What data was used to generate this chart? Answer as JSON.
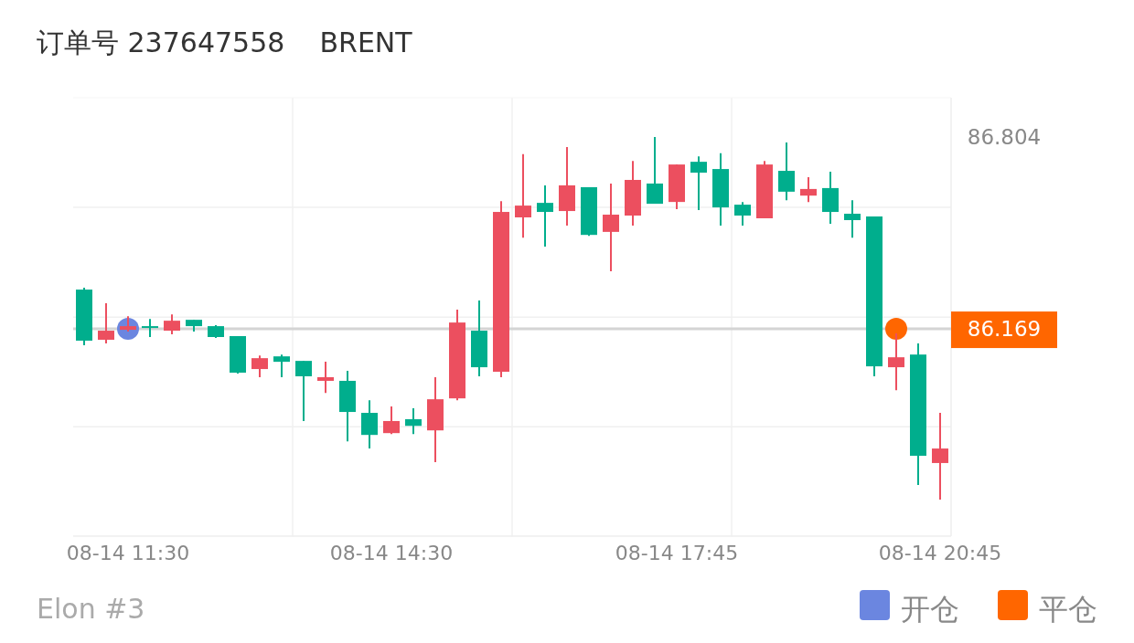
{
  "chart_data": {
    "type": "candlestick",
    "title": "订单号 237647558    BRENT",
    "categories": [
      null,
      null,
      "08-14 11:30",
      null,
      null,
      null,
      null,
      null,
      null,
      null,
      null,
      null,
      null,
      null,
      "08-14 14:30",
      null,
      null,
      null,
      null,
      null,
      null,
      null,
      null,
      null,
      null,
      null,
      null,
      "08-14 17:45",
      null,
      null,
      null,
      null,
      null,
      null,
      null,
      null,
      null,
      null,
      null,
      "08-14 20:45"
    ],
    "ohlc": [
      [
        86.299,
        86.305,
        86.115,
        86.13
      ],
      [
        86.133,
        86.254,
        86.121,
        86.163
      ],
      [
        86.166,
        86.211,
        86.16,
        86.178
      ],
      [
        86.178,
        86.202,
        86.142,
        86.172
      ],
      [
        86.163,
        86.217,
        86.151,
        86.196
      ],
      [
        86.199,
        86.199,
        86.16,
        86.178
      ],
      [
        86.178,
        86.181,
        86.139,
        86.142
      ],
      [
        86.145,
        86.145,
        86.021,
        86.024
      ],
      [
        86.036,
        86.081,
        86.009,
        86.072
      ],
      [
        86.078,
        86.084,
        86.009,
        86.06
      ],
      [
        86.063,
        86.063,
        85.864,
        86.012
      ],
      [
        85.997,
        86.06,
        85.957,
        86.009
      ],
      [
        85.997,
        86.03,
        85.797,
        85.894
      ],
      [
        85.891,
        85.933,
        85.773,
        85.818
      ],
      [
        85.824,
        85.912,
        85.821,
        85.864
      ],
      [
        85.87,
        85.906,
        85.821,
        85.848
      ],
      [
        85.833,
        86.009,
        85.728,
        85.936
      ],
      [
        85.939,
        86.233,
        85.933,
        86.19
      ],
      [
        86.163,
        86.263,
        86.012,
        86.042
      ],
      [
        86.027,
        86.592,
        86.009,
        86.556
      ],
      [
        86.538,
        86.747,
        86.471,
        86.577
      ],
      [
        86.586,
        86.644,
        86.441,
        86.556
      ],
      [
        86.559,
        86.771,
        86.511,
        86.644
      ],
      [
        86.638,
        86.638,
        86.477,
        86.48
      ],
      [
        86.49,
        86.65,
        86.36,
        86.547
      ],
      [
        86.544,
        86.725,
        86.511,
        86.662
      ],
      [
        86.65,
        86.804,
        86.583,
        86.583
      ],
      [
        86.589,
        86.713,
        86.565,
        86.713
      ],
      [
        86.722,
        86.74,
        86.562,
        86.686
      ],
      [
        86.698,
        86.75,
        86.511,
        86.571
      ],
      [
        86.58,
        86.589,
        86.511,
        86.544
      ],
      [
        86.535,
        86.725,
        86.535,
        86.713
      ],
      [
        86.692,
        86.786,
        86.595,
        86.623
      ],
      [
        86.61,
        86.671,
        86.589,
        86.632
      ],
      [
        86.635,
        86.689,
        86.517,
        86.556
      ],
      [
        86.55,
        86.595,
        86.471,
        86.529
      ],
      [
        86.541,
        86.541,
        86.012,
        86.045
      ],
      [
        86.042,
        86.154,
        85.966,
        86.075
      ],
      [
        86.084,
        86.121,
        85.652,
        85.749
      ],
      [
        85.725,
        85.891,
        85.604,
        85.773
      ]
    ],
    "colors": [
      "#00ae8d",
      "#ec4f5f",
      "#ec4f5f",
      "#00ae8d",
      "#ec4f5f",
      "#00ae8d",
      "#00ae8d",
      "#00ae8d",
      "#ec4f5f",
      "#00ae8d",
      "#00ae8d",
      "#ec4f5f",
      "#00ae8d",
      "#00ae8d",
      "#ec4f5f",
      "#00ae8d",
      "#ec4f5f",
      "#ec4f5f",
      "#00ae8d",
      "#ec4f5f",
      "#ec4f5f",
      "#00ae8d",
      "#ec4f5f",
      "#00ae8d",
      "#ec4f5f",
      "#ec4f5f",
      "#00ae8d",
      "#ec4f5f",
      "#00ae8d",
      "#00ae8d",
      "#00ae8d",
      "#ec4f5f",
      "#00ae8d",
      "#ec4f5f",
      "#00ae8d",
      "#00ae8d",
      "#00ae8d",
      "#ec4f5f",
      "#00ae8d",
      "#ec4f5f"
    ],
    "series": [
      {
        "name": "开仓",
        "type": "scatter",
        "color": "#6b86e0",
        "values": [
          null,
          null,
          86.169,
          null,
          null,
          null,
          null,
          null,
          null,
          null,
          null,
          null,
          null,
          null,
          null,
          null,
          null,
          null,
          null,
          null,
          null,
          null,
          null,
          null,
          null,
          null,
          null,
          null,
          null,
          null,
          null,
          null,
          null,
          null,
          null,
          null,
          null,
          null,
          null,
          null
        ]
      },
      {
        "name": "平仓",
        "type": "scatter",
        "color": "#ff6600",
        "values": [
          null,
          null,
          null,
          null,
          null,
          null,
          null,
          null,
          null,
          null,
          null,
          null,
          null,
          null,
          null,
          null,
          null,
          null,
          null,
          null,
          null,
          null,
          null,
          null,
          null,
          null,
          null,
          null,
          null,
          null,
          null,
          null,
          null,
          null,
          null,
          null,
          null,
          86.169,
          null,
          null
        ]
      }
    ],
    "ylim": [
      85.483,
      86.934
    ],
    "yticks": [
      {
        "value": 85.845,
        "label": null
      },
      {
        "value": 86.169,
        "label": "86.169"
      },
      {
        "value": 86.208,
        "label": null
      },
      {
        "value": 86.571,
        "label": null
      },
      {
        "value": 86.804,
        "label": "86.804"
      }
    ],
    "ref_lines": [
      {
        "axis": "y",
        "value": 86.169,
        "color": "#d4d4d4"
      }
    ],
    "grid": true,
    "legend": "bottom right",
    "marker": "circle",
    "annotations": [
      "Elon #3"
    ]
  }
}
